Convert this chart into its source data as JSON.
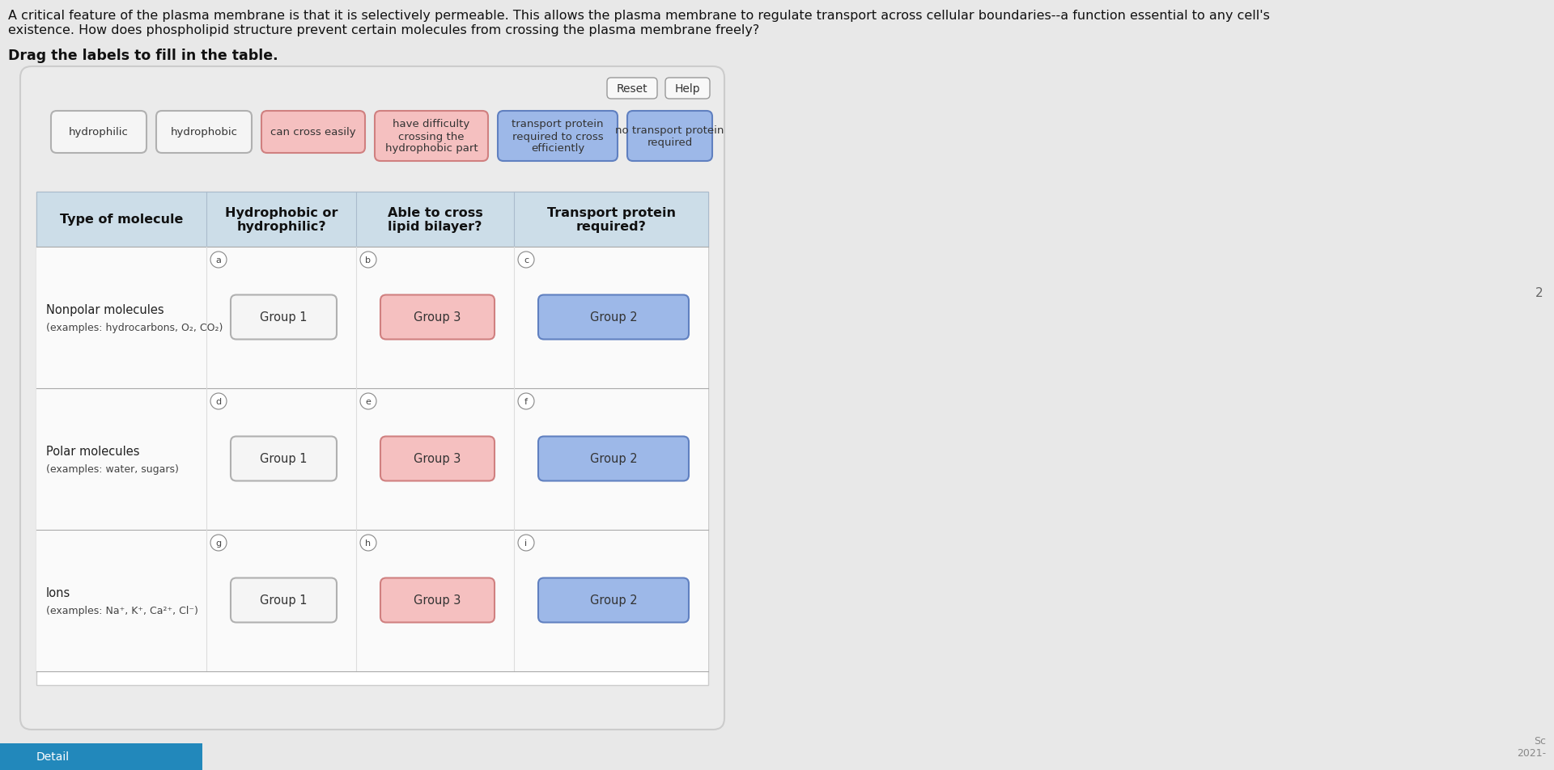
{
  "title_line1": "A critical feature of the plasma membrane is that it is selectively permeable. This allows the plasma membrane to regulate transport across cellular boundaries--a function essential to any cell's",
  "title_line2": "existence. How does phospholipid structure prevent certain molecules from crossing the plasma membrane freely?",
  "subtitle": "Drag the labels to fill in the table.",
  "bg_color": "#e8e8e8",
  "panel_bg": "#efefef",
  "label_boxes": [
    {
      "text": "hydrophilic",
      "color": "#f5f5f5",
      "border": "#b0b0b0",
      "text_color": "#333333"
    },
    {
      "text": "hydrophobic",
      "color": "#f5f5f5",
      "border": "#b0b0b0",
      "text_color": "#333333"
    },
    {
      "text": "can cross easily",
      "color": "#f5c0c0",
      "border": "#d08080",
      "text_color": "#333333"
    },
    {
      "text": "have difficulty\ncrossing the\nhydrophobic part",
      "color": "#f5c0c0",
      "border": "#d08080",
      "text_color": "#333333"
    },
    {
      "text": "transport protein\nrequired to cross\nefficiently",
      "color": "#9db8e8",
      "border": "#6080c0",
      "text_color": "#333333"
    },
    {
      "text": "no transport protein\nrequired",
      "color": "#9db8e8",
      "border": "#6080c0",
      "text_color": "#333333"
    }
  ],
  "table_headers": [
    "Type of molecule",
    "Hydrophobic or\nhydrophilic?",
    "Able to cross\nlipid bilayer?",
    "Transport protein\nrequired?"
  ],
  "header_bg": "#ccdde8",
  "rows": [
    {
      "label_line1": "Nonpolar molecules",
      "label_line2": "(examples: hydrocarbons, O₂, CO₂)",
      "letter_a": "a",
      "letter_b": "b",
      "letter_c": "c",
      "col1_text": "Group 1",
      "col1_color": "#f5f5f5",
      "col1_border": "#b0b0b0",
      "col2_text": "Group 3",
      "col2_color": "#f5c0c0",
      "col2_border": "#d08080",
      "col3_text": "Group 2",
      "col3_color": "#9db8e8",
      "col3_border": "#6080c0"
    },
    {
      "label_line1": "Polar molecules",
      "label_line2": "(examples: water, sugars)",
      "letter_a": "d",
      "letter_b": "e",
      "letter_c": "f",
      "col1_text": "Group 1",
      "col1_color": "#f5f5f5",
      "col1_border": "#b0b0b0",
      "col2_text": "Group 3",
      "col2_color": "#f5c0c0",
      "col2_border": "#d08080",
      "col3_text": "Group 2",
      "col3_color": "#9db8e8",
      "col3_border": "#6080c0"
    },
    {
      "label_line1": "Ions",
      "label_line2": "(examples: Na⁺, K⁺, Ca²⁺, Cl⁻)",
      "letter_a": "g",
      "letter_b": "h",
      "letter_c": "i",
      "col1_text": "Group 1",
      "col1_color": "#f5f5f5",
      "col1_border": "#b0b0b0",
      "col2_text": "Group 3",
      "col2_color": "#f5c0c0",
      "col2_border": "#d08080",
      "col3_text": "Group 2",
      "col3_color": "#9db8e8",
      "col3_border": "#6080c0"
    }
  ],
  "reset_btn": "Reset",
  "help_btn": "Help",
  "footer_right_top": "2",
  "footer_right_mid": "Sc",
  "footer_right_bot": "2021-",
  "detail_btn": "Detail"
}
